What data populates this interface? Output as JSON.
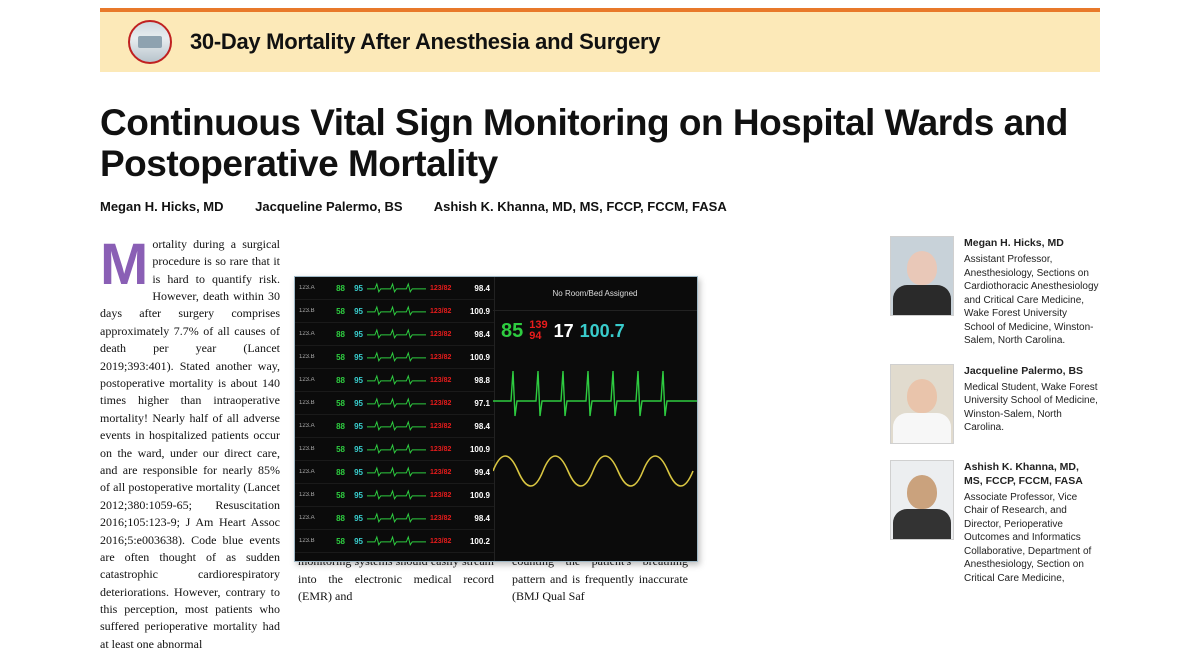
{
  "banner": {
    "title": "30-Day Mortality After Anesthesia and Surgery",
    "rule_color": "#e8792a",
    "bg_color": "#fce9b8",
    "icon_border": "#c02020"
  },
  "article": {
    "title": "Continuous Vital Sign Monitoring on Hospital Wards and Postoperative Mortality",
    "byline": [
      "Megan H. Hicks, MD",
      "Jacqueline Palermo, BS",
      "Ashish K. Khanna, MD, MS, FCCP, FCCM, FASA"
    ],
    "dropcap": "M",
    "col1": "ortality during a surgical procedure is so rare that it is hard to quantify risk. However, death within 30 days after surgery comprises approximately 7.7% of all causes of death per year (Lancet 2019;393:401). Stated another way, postoperative mortality is about 140 times higher than intraoperative mortality! Nearly half of all adverse events in hospitalized patients occur on the ward, under our direct care, and are responsible for nearly 85% of all postoperative mortality (Lancet 2012;380:1059-65; Resuscitation 2016;105:123-9; J Am Heart Assoc 2016;5:e003638). Code blue events are often thought of as sudden catastrophic cardiorespiratory deteriorations. However, contrary to this perception, most patients who suffered perioperative mortality had at least one abnormal",
    "col2": "the important data from ward monitoring systems should easily stream into the electronic medical record (EMR) and",
    "col3": "assessment with observation and counting the patient's breathing pattern and is frequently inaccurate (BMJ Qual Saf"
  },
  "monitor": {
    "header_right": "No Room/Bed Assigned",
    "rows": [
      {
        "tag": "123.A",
        "hr": "88",
        "spo": "95",
        "bp": "123/82",
        "num": "98.4"
      },
      {
        "tag": "123.B",
        "hr": "58",
        "spo": "95",
        "bp": "123/82",
        "num": "100.9"
      },
      {
        "tag": "123.A",
        "hr": "88",
        "spo": "95",
        "bp": "123/82",
        "num": "98.4"
      },
      {
        "tag": "123.B",
        "hr": "58",
        "spo": "95",
        "bp": "123/82",
        "num": "100.9"
      },
      {
        "tag": "123.A",
        "hr": "88",
        "spo": "95",
        "bp": "123/82",
        "num": "98.8"
      },
      {
        "tag": "123.B",
        "hr": "58",
        "spo": "95",
        "bp": "123/82",
        "num": "97.1"
      },
      {
        "tag": "123.A",
        "hr": "88",
        "spo": "95",
        "bp": "123/82",
        "num": "98.4"
      },
      {
        "tag": "123.B",
        "hr": "58",
        "spo": "95",
        "bp": "123/82",
        "num": "100.9"
      },
      {
        "tag": "123.A",
        "hr": "88",
        "spo": "95",
        "bp": "123/82",
        "num": "99.4"
      },
      {
        "tag": "123.B",
        "hr": "58",
        "spo": "95",
        "bp": "123/82",
        "num": "100.9"
      },
      {
        "tag": "123.A",
        "hr": "88",
        "spo": "95",
        "bp": "123/82",
        "num": "98.4"
      },
      {
        "tag": "123.B",
        "hr": "58",
        "spo": "95",
        "bp": "123/82",
        "num": "100.2"
      }
    ],
    "detail": {
      "hr": "85",
      "bp_sys": "139",
      "bp_dia": "94",
      "rr": "17",
      "spo2": "100.7"
    },
    "colors": {
      "hr": "#2ecc40",
      "spo": "#39cccc",
      "bp": "#e81c1c",
      "text": "#ffffff",
      "bg": "#0b0b0b",
      "pleth": "#d9c642"
    }
  },
  "authors": [
    {
      "name": "Megan H. Hicks, MD",
      "bio": "Assistant Professor, Anesthesiology, Sections on Cardiothoracic Anesthesiology and Critical Care Medicine, Wake Forest University School of Medicine, Winston-Salem, North Carolina.",
      "photo": "p1"
    },
    {
      "name": "Jacqueline Palermo, BS",
      "bio": "Medical Student, Wake Forest University School of Medicine, Winston-Salem, North Carolina.",
      "photo": "p2"
    },
    {
      "name": "Ashish K. Khanna, MD, MS, FCCP, FCCM, FASA",
      "bio": "Associate Professor, Vice Chair of Research, and Director, Perioperative Outcomes and Informatics Collaborative, Department of Anesthesiology, Section on Critical Care Medicine,",
      "photo": "p3"
    }
  ]
}
